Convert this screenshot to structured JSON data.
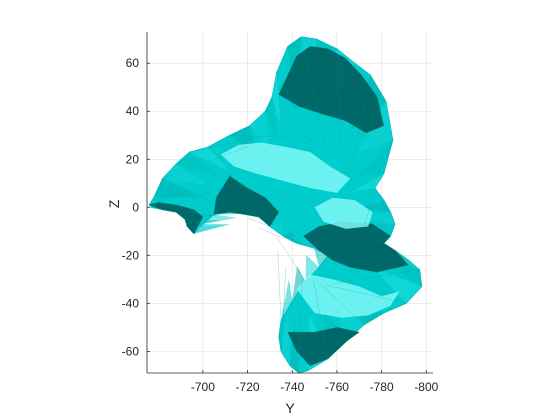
{
  "chart_data": {
    "type": "surface-3d",
    "xlabel": "Y",
    "ylabel": "Z",
    "xlim": [
      -675,
      -803
    ],
    "ylim": [
      -69,
      73
    ],
    "xdir": "reversed",
    "grid": true,
    "x_ticks": [
      -700,
      -720,
      -740,
      -760,
      -780,
      -800
    ],
    "x_tick_labels": [
      "-700",
      "-720",
      "-740",
      "-760",
      "-780",
      "-800"
    ],
    "y_ticks": [
      -60,
      -40,
      -20,
      0,
      20,
      40,
      60
    ],
    "y_tick_labels": [
      "-60",
      "-40",
      "-20",
      "0",
      "20",
      "40",
      "60"
    ],
    "surface_color": "#00cccc",
    "shade_dark": "#006060",
    "shade_mid": "#00b4b4",
    "shade_light": "#7ff7f7",
    "outline": [
      [
        -676,
        1
      ],
      [
        -678,
        4
      ],
      [
        -682,
        12
      ],
      [
        -688,
        18
      ],
      [
        -694,
        23
      ],
      [
        -702,
        25
      ],
      [
        -712,
        30
      ],
      [
        -721,
        34
      ],
      [
        -728,
        40
      ],
      [
        -731,
        46
      ],
      [
        -733,
        56
      ],
      [
        -738,
        67
      ],
      [
        -744,
        71
      ],
      [
        -751,
        70
      ],
      [
        -760,
        66
      ],
      [
        -768,
        60
      ],
      [
        -775,
        55
      ],
      [
        -782,
        44
      ],
      [
        -785,
        28
      ],
      [
        -781,
        14
      ],
      [
        -777,
        8
      ],
      [
        -781,
        3
      ],
      [
        -784,
        -2
      ],
      [
        -786,
        -7
      ],
      [
        -784,
        -12
      ],
      [
        -781,
        -15
      ],
      [
        -786,
        -18
      ],
      [
        -792,
        -22
      ],
      [
        -797,
        -26
      ],
      [
        -798,
        -33
      ],
      [
        -791,
        -40
      ],
      [
        -781,
        -44
      ],
      [
        -772,
        -49
      ],
      [
        -764,
        -56
      ],
      [
        -756,
        -63
      ],
      [
        -747,
        -68
      ],
      [
        -743,
        -69
      ],
      [
        -739,
        -66
      ],
      [
        -735,
        -60
      ],
      [
        -734,
        -54
      ],
      [
        -735,
        -47
      ],
      [
        -740,
        -39
      ],
      [
        -746,
        -31
      ],
      [
        -752,
        -25
      ],
      [
        -756,
        -20
      ],
      [
        -750,
        -17
      ],
      [
        -742,
        -15
      ],
      [
        -736,
        -12
      ],
      [
        -730,
        -8
      ],
      [
        -725,
        -4
      ],
      [
        -719,
        -3
      ],
      [
        -712,
        -2
      ],
      [
        -705,
        -3
      ],
      [
        -700,
        -7
      ],
      [
        -696,
        -11
      ],
      [
        -693,
        -8
      ],
      [
        -692,
        -5
      ],
      [
        -688,
        -2
      ],
      [
        -682,
        -1
      ],
      [
        -677,
        0
      ]
    ],
    "dark_regions": [
      [
        [
          -734,
          47
        ],
        [
          -742,
          63
        ],
        [
          -748,
          67
        ],
        [
          -756,
          66
        ],
        [
          -764,
          62
        ],
        [
          -771,
          55
        ],
        [
          -778,
          46
        ],
        [
          -781,
          34
        ],
        [
          -773,
          31
        ],
        [
          -764,
          36
        ],
        [
          -753,
          39
        ],
        [
          -743,
          42
        ]
      ],
      [
        [
          -676,
          1
        ],
        [
          -680,
          2
        ],
        [
          -688,
          1
        ],
        [
          -696,
          -1
        ],
        [
          -700,
          -4
        ],
        [
          -696,
          -11
        ],
        [
          -693,
          -8
        ],
        [
          -692,
          -5
        ],
        [
          -688,
          -2
        ],
        [
          -682,
          -1
        ]
      ],
      [
        [
          -712,
          13
        ],
        [
          -720,
          8
        ],
        [
          -728,
          4
        ],
        [
          -734,
          -2
        ],
        [
          -730,
          -8
        ],
        [
          -725,
          -4
        ],
        [
          -719,
          -3
        ],
        [
          -712,
          -2
        ],
        [
          -705,
          -3
        ],
        [
          -706,
          4
        ]
      ],
      [
        [
          -745,
          -12
        ],
        [
          -752,
          -18
        ],
        [
          -758,
          -22
        ],
        [
          -766,
          -25
        ],
        [
          -778,
          -27
        ],
        [
          -792,
          -24
        ],
        [
          -786,
          -18
        ],
        [
          -781,
          -15
        ],
        [
          -784,
          -12
        ],
        [
          -776,
          -7
        ],
        [
          -762,
          -6
        ],
        [
          -752,
          -8
        ]
      ],
      [
        [
          -738,
          -52
        ],
        [
          -742,
          -60
        ],
        [
          -748,
          -66
        ],
        [
          -756,
          -63
        ],
        [
          -764,
          -56
        ],
        [
          -770,
          -52
        ],
        [
          -760,
          -50
        ],
        [
          -750,
          -52
        ]
      ]
    ],
    "light_regions": [
      [
        [
          -708,
          22
        ],
        [
          -716,
          26
        ],
        [
          -726,
          27
        ],
        [
          -738,
          25
        ],
        [
          -748,
          23
        ],
        [
          -757,
          17
        ],
        [
          -766,
          12
        ],
        [
          -760,
          6
        ],
        [
          -748,
          8
        ],
        [
          -736,
          11
        ],
        [
          -724,
          14
        ],
        [
          -714,
          17
        ]
      ],
      [
        [
          -750,
          0
        ],
        [
          -758,
          4
        ],
        [
          -768,
          3
        ],
        [
          -776,
          -2
        ],
        [
          -774,
          -8
        ],
        [
          -764,
          -9
        ],
        [
          -754,
          -6
        ]
      ],
      [
        [
          -742,
          -34
        ],
        [
          -748,
          -28
        ],
        [
          -758,
          -30
        ],
        [
          -770,
          -33
        ],
        [
          -780,
          -37
        ],
        [
          -788,
          -35
        ],
        [
          -784,
          -41
        ],
        [
          -774,
          -45
        ],
        [
          -762,
          -46
        ],
        [
          -750,
          -44
        ]
      ]
    ]
  }
}
